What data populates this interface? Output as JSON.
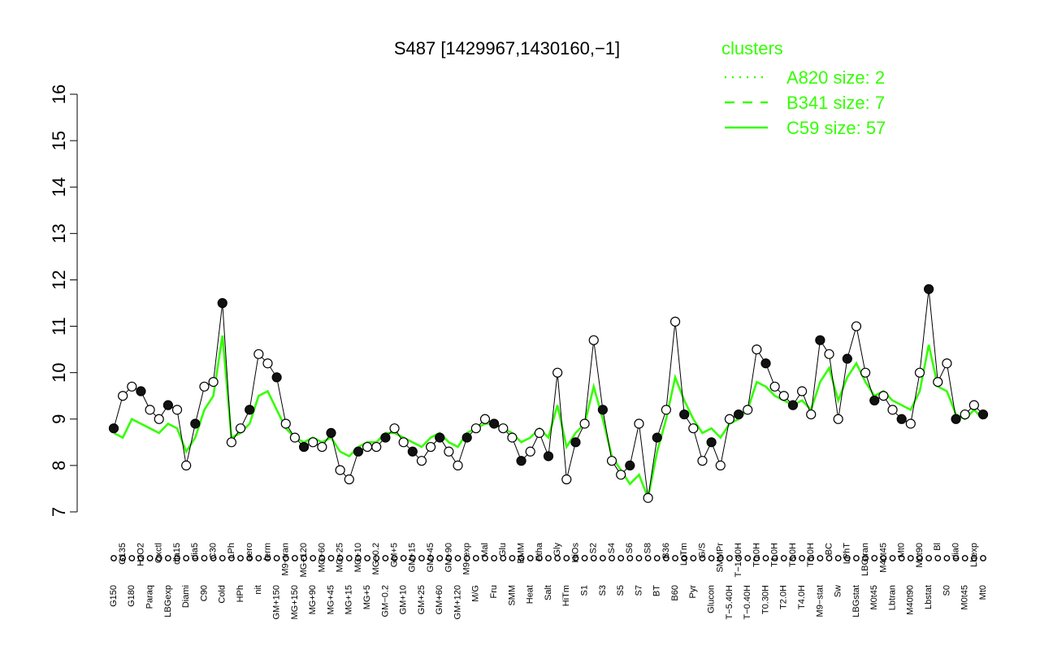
{
  "chart_data": {
    "type": "line",
    "title": "S487 [1429967,1430160,−1]",
    "xlabel": "",
    "ylabel": "",
    "ylim": [
      7,
      16
    ],
    "yticks": [
      7,
      8,
      9,
      10,
      11,
      12,
      13,
      14,
      15,
      16
    ],
    "grid": false,
    "legend": {
      "title": "clusters",
      "placement": "top-right",
      "color": "#33ff00",
      "entries": [
        {
          "label": "A820 size: 2",
          "style": "dotted"
        },
        {
          "label": "B341 size: 7",
          "style": "dashed"
        },
        {
          "label": "C59 size: 57",
          "style": "solid"
        }
      ]
    },
    "x_tick_labels": [
      "G150",
      "G135",
      "G180",
      "H2O2",
      "Paraq",
      "Oxctl",
      "LBGexp",
      "dia15",
      "Diami",
      "dia5",
      "C90",
      "C30",
      "Cold",
      "LPh",
      "HPh",
      "aero",
      "nit",
      "ferm",
      "GM+150",
      "M9−tran",
      "MG+150",
      "MG+120",
      "MG+90",
      "MG+60",
      "MG+45",
      "MG+25",
      "MG+15",
      "MG+10",
      "MG+5",
      "MG−0.2",
      "GM−0.2",
      "GM+5",
      "GM+10",
      "GM+15",
      "GM+25",
      "GM+45",
      "GM+60",
      "GM+90",
      "GM+120",
      "M9−exp",
      "M/G",
      "Mal",
      "Fru",
      "Glu",
      "SMM",
      "BMM",
      "Heat",
      "Etha",
      "Salt",
      "Gly",
      "HiTm",
      "HiOs",
      "S1",
      "S2",
      "S3",
      "S4",
      "S5",
      "S6",
      "S7",
      "S8",
      "BT",
      "B36",
      "B60",
      "LoTm",
      "Pyr",
      "G/S",
      "Glucon",
      "SMMPr",
      "T−5.40H",
      "T−1.40H",
      "T−0.40H",
      "T0.0H",
      "T0.30H",
      "T1.0H",
      "T2.0H",
      "T3.0H",
      "T4.0H",
      "T5.0H",
      "M9−stat",
      "BC",
      "Sw",
      "LPhT",
      "LBGstat",
      "LBGtran",
      "M0t45",
      "M40t45",
      "Lbtran",
      "Mt0",
      "M40t90",
      "M0t90",
      "Lbstat",
      "Bl",
      "S0",
      "dia0",
      "M0t45",
      "Lbexp",
      "Mt0"
    ],
    "series": [
      {
        "style": "points",
        "values": [
          8.8,
          9.5,
          9.7,
          9.6,
          9.2,
          9.0,
          9.3,
          9.2,
          8.0,
          8.9,
          9.7,
          9.8,
          11.5,
          8.5,
          8.8,
          9.2,
          10.4,
          10.2,
          9.9,
          8.9,
          8.6,
          8.4,
          8.5,
          8.4,
          8.7,
          7.9,
          7.7,
          8.3,
          8.4,
          8.4,
          8.6,
          8.8,
          8.5,
          8.3,
          8.1,
          8.4,
          8.6,
          8.3,
          8.0,
          8.6,
          8.8,
          9.0,
          8.9,
          8.8,
          8.6,
          8.1,
          8.3,
          8.7,
          8.2,
          10.0,
          7.7,
          8.5,
          8.9,
          10.7,
          9.2,
          8.1,
          7.8,
          8.0,
          8.9,
          7.3,
          8.6,
          9.2,
          11.1,
          9.1,
          8.8,
          8.1,
          8.5,
          8.0,
          9.0,
          9.1,
          9.2,
          10.5,
          10.2,
          9.7,
          9.5,
          9.3,
          9.6,
          9.1,
          10.7,
          10.4,
          9.0,
          10.3,
          11.0,
          10.0,
          9.4,
          9.5,
          9.2,
          9.0,
          8.9,
          10.0,
          11.8,
          9.8,
          10.2,
          9.0,
          9.1,
          9.3,
          9.1
        ]
      },
      {
        "name": "C59 size: 57",
        "style": "solid",
        "values": [
          8.7,
          8.6,
          9.0,
          8.9,
          8.8,
          8.7,
          8.9,
          8.8,
          8.3,
          8.6,
          9.2,
          9.5,
          10.8,
          8.6,
          8.7,
          8.9,
          9.5,
          9.6,
          9.2,
          8.8,
          8.6,
          8.5,
          8.6,
          8.5,
          8.6,
          8.3,
          8.2,
          8.4,
          8.5,
          8.5,
          8.7,
          8.7,
          8.6,
          8.5,
          8.4,
          8.6,
          8.7,
          8.5,
          8.4,
          8.7,
          8.8,
          8.9,
          8.9,
          8.8,
          8.7,
          8.5,
          8.6,
          8.8,
          8.6,
          9.3,
          8.4,
          8.7,
          8.9,
          9.7,
          9.0,
          8.2,
          7.9,
          7.6,
          7.8,
          7.3,
          8.3,
          9.0,
          9.9,
          9.4,
          9.0,
          8.7,
          8.8,
          8.6,
          8.9,
          9.0,
          9.2,
          9.8,
          9.7,
          9.5,
          9.4,
          9.3,
          9.4,
          9.2,
          9.8,
          10.1,
          9.4,
          9.9,
          10.2,
          9.8,
          9.5,
          9.6,
          9.4,
          9.3,
          9.2,
          9.6,
          10.6,
          9.7,
          9.6,
          9.1,
          9.0,
          9.2,
          9.0
        ]
      }
    ]
  }
}
